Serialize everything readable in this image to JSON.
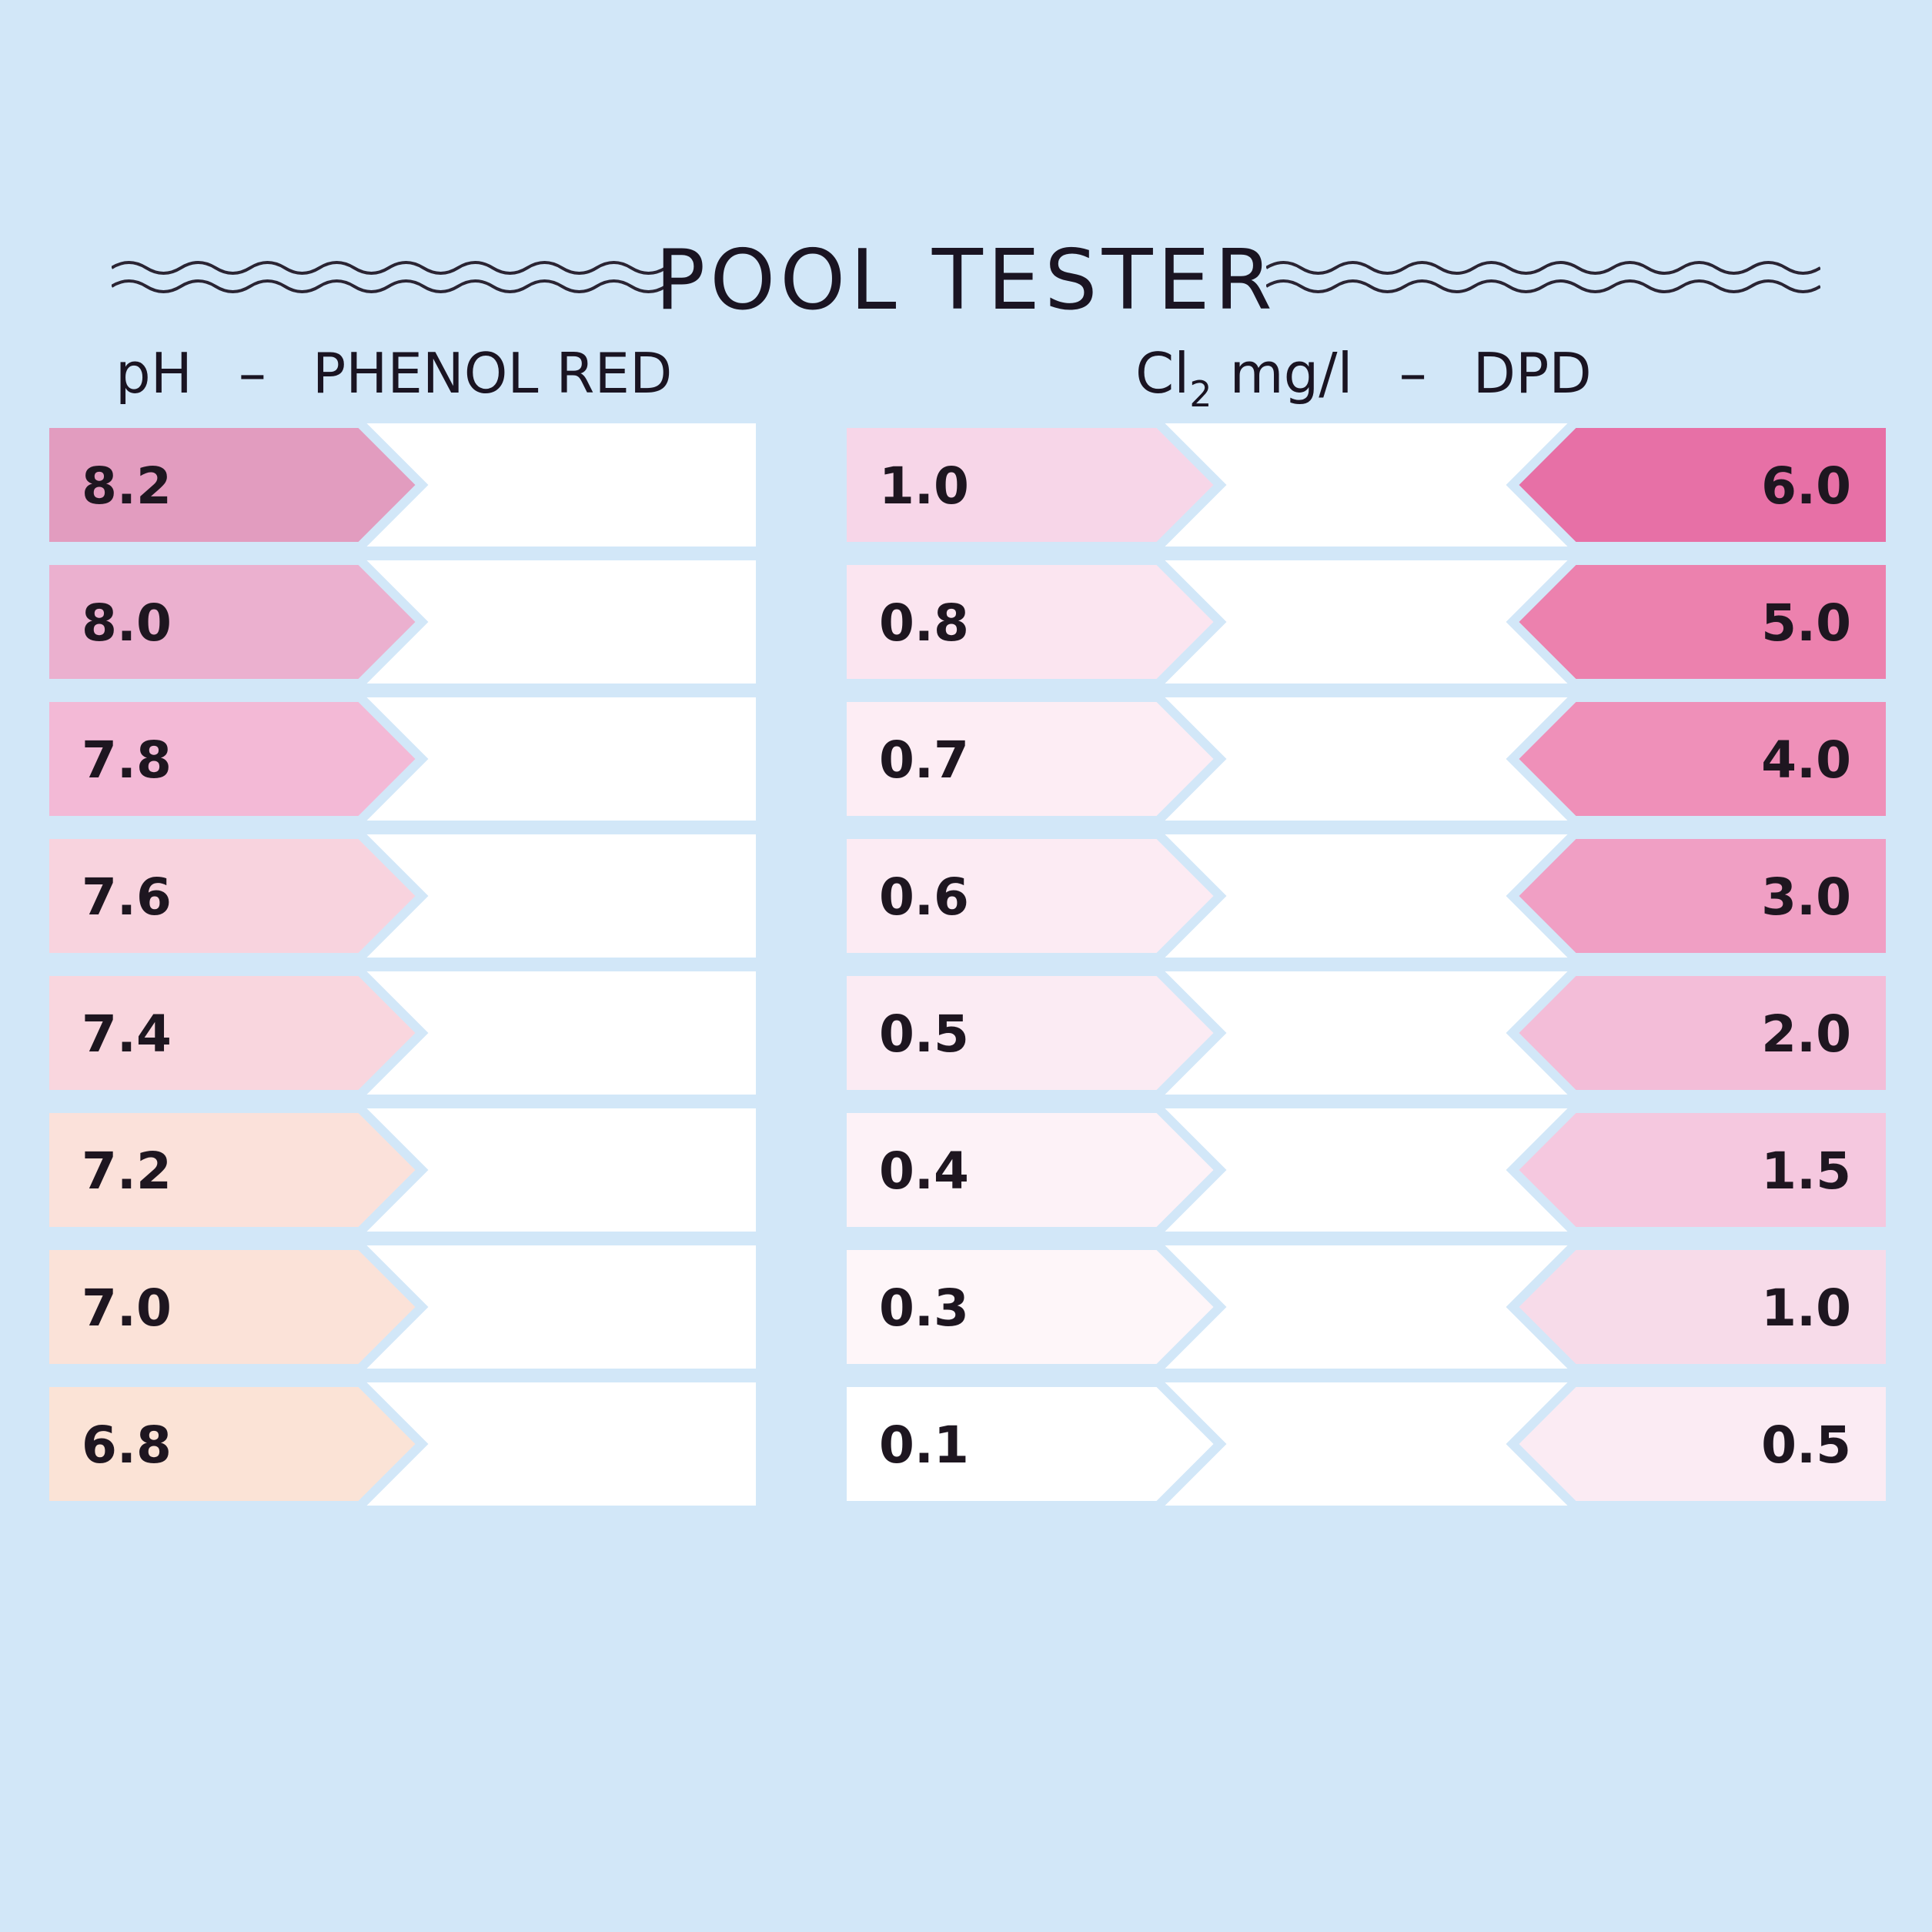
{
  "title": "POOL TESTER",
  "headings": {
    "ph": {
      "name": "pH",
      "dash": "–",
      "method": "PHENOL RED"
    },
    "chlorine": {
      "formula": "Cl",
      "subscript": "2",
      "unit": "mg/l",
      "dash": "–",
      "method": "DPD"
    }
  },
  "ph_scale": [
    {
      "value": "8.2",
      "color": "#e29cbf"
    },
    {
      "value": "8.0",
      "color": "#ebb0cf"
    },
    {
      "value": "7.8",
      "color": "#f3b9d6"
    },
    {
      "value": "7.6",
      "color": "#f8d3de"
    },
    {
      "value": "7.4",
      "color": "#f9d6de"
    },
    {
      "value": "7.2",
      "color": "#fbe1da"
    },
    {
      "value": "7.0",
      "color": "#fbe2d8"
    },
    {
      "value": "6.8",
      "color": "#fbe3d6"
    }
  ],
  "chlorine_low": [
    {
      "value": "1.0",
      "color": "#f7d6e8"
    },
    {
      "value": "0.8",
      "color": "#fbe5f0"
    },
    {
      "value": "0.7",
      "color": "#fdedf4"
    },
    {
      "value": "0.6",
      "color": "#fcebf3"
    },
    {
      "value": "0.5",
      "color": "#fbebf3"
    },
    {
      "value": "0.4",
      "color": "#fdf2f7"
    },
    {
      "value": "0.3",
      "color": "#fef6f9"
    },
    {
      "value": "0.1",
      "color": "#ffffff"
    }
  ],
  "chlorine_high": [
    {
      "value": "6.0",
      "color": "#e770a6"
    },
    {
      "value": "5.0",
      "color": "#ec81ae"
    },
    {
      "value": "4.0",
      "color": "#ef90b9"
    },
    {
      "value": "3.0",
      "color": "#f09fc4"
    },
    {
      "value": "2.0",
      "color": "#f3bdd8"
    },
    {
      "value": "1.5",
      "color": "#f5c8df"
    },
    {
      "value": "1.0",
      "color": "#f7dbe9"
    },
    {
      "value": "0.5",
      "color": "#fbebf3"
    }
  ],
  "colors": {
    "background": "#d2e7f8",
    "blank": "#ffffff",
    "separator": "#d2e7f8"
  }
}
